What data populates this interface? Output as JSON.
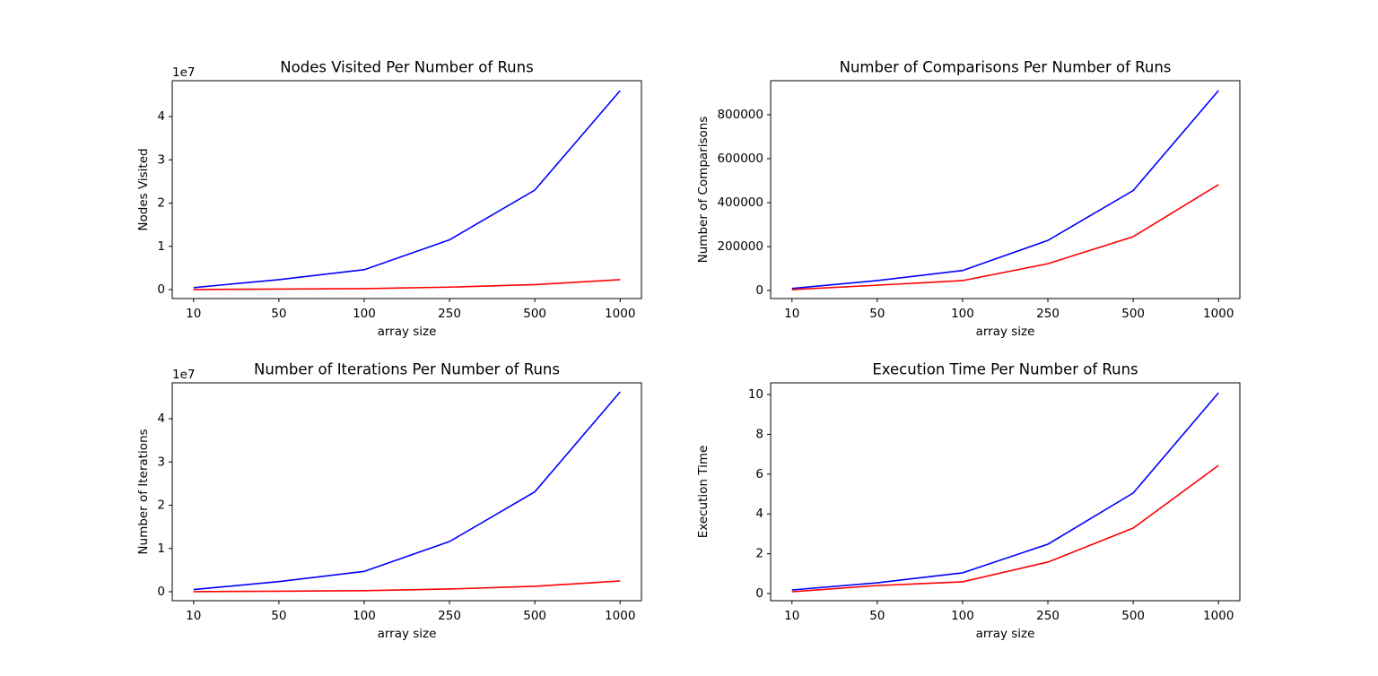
{
  "chart_data": [
    {
      "type": "line",
      "title": "Nodes Visited Per Number of Runs",
      "x_label": "array size",
      "y_label": "Nodes Visited",
      "y_offset_text": "1e7",
      "categories": [
        "10",
        "50",
        "100",
        "250",
        "500",
        "1000"
      ],
      "series": [
        {
          "color": "#0000ff",
          "values": [
            460000,
            2300000,
            4600000,
            11500000,
            23000000,
            46000000
          ]
        },
        {
          "color": "#ff0000",
          "values": [
            23000,
            115000,
            230000,
            575000,
            1150000,
            2300000
          ]
        }
      ],
      "ylim": [
        -2070000,
        48300000
      ],
      "yticks": [
        {
          "value": 0,
          "label": "0"
        },
        {
          "value": 10000000,
          "label": "1"
        },
        {
          "value": 20000000,
          "label": "2"
        },
        {
          "value": 30000000,
          "label": "3"
        },
        {
          "value": 40000000,
          "label": "4"
        }
      ]
    },
    {
      "type": "line",
      "title": "Number of Comparisons Per Number of Runs",
      "x_label": "array size",
      "y_label": "Number of Comparisons",
      "categories": [
        "10",
        "50",
        "100",
        "250",
        "500",
        "1000"
      ],
      "series": [
        {
          "color": "#0000ff",
          "values": [
            9100,
            45000,
            91000,
            228000,
            455000,
            910000
          ]
        },
        {
          "color": "#ff0000",
          "values": [
            4000,
            24000,
            45000,
            122000,
            245000,
            482000
          ]
        }
      ],
      "ylim": [
        -36700,
        955000
      ],
      "yticks": [
        0,
        200000,
        400000,
        600000,
        800000
      ]
    },
    {
      "type": "line",
      "title": "Number of Iterations Per Number of Runs",
      "x_label": "array size",
      "y_label": "Number of Iterations",
      "y_offset_text": "1e7",
      "categories": [
        "10",
        "50",
        "100",
        "250",
        "500",
        "1000"
      ],
      "series": [
        {
          "color": "#0000ff",
          "values": [
            500000,
            2350000,
            4700000,
            11600000,
            23100000,
            46200000
          ]
        },
        {
          "color": "#ff0000",
          "values": [
            25000,
            125000,
            250000,
            630000,
            1250000,
            2500000
          ]
        }
      ],
      "ylim": [
        -2070000,
        48300000
      ],
      "yticks": [
        {
          "value": 0,
          "label": "0"
        },
        {
          "value": 10000000,
          "label": "1"
        },
        {
          "value": 20000000,
          "label": "2"
        },
        {
          "value": 30000000,
          "label": "3"
        },
        {
          "value": 40000000,
          "label": "4"
        }
      ]
    },
    {
      "type": "line",
      "title": "Execution Time Per Number of Runs",
      "x_label": "array size",
      "y_label": "Execution Time",
      "categories": [
        "10",
        "50",
        "100",
        "250",
        "500",
        "1000"
      ],
      "series": [
        {
          "color": "#0000ff",
          "values": [
            0.18,
            0.54,
            1.04,
            2.48,
            5.05,
            10.09
          ]
        },
        {
          "color": "#ff0000",
          "values": [
            0.09,
            0.4,
            0.59,
            1.58,
            3.29,
            6.44
          ]
        }
      ],
      "ylim": [
        -0.36,
        10.59
      ],
      "yticks": [
        0,
        2,
        4,
        6,
        8,
        10
      ]
    }
  ]
}
